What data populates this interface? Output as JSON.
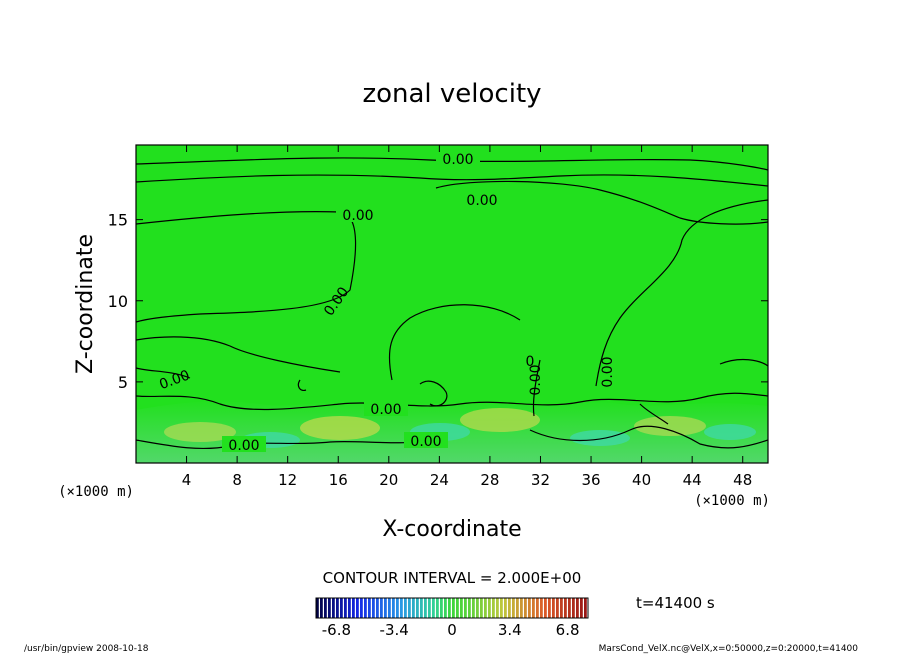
{
  "chart_data": {
    "type": "heatmap",
    "title": "zonal velocity",
    "xlabel": "X-coordinate",
    "ylabel": "Z-coordinate",
    "x_unit": "(×1000 m)",
    "y_unit": "(×1000 m)",
    "xlim": [
      0,
      50
    ],
    "ylim": [
      0,
      19.6
    ],
    "x_ticks": [
      4,
      8,
      12,
      16,
      20,
      24,
      28,
      32,
      36,
      40,
      44,
      48
    ],
    "y_ticks": [
      5,
      10,
      15
    ],
    "contour_interval": "CONTOUR INTERVAL = 2.000E+00",
    "contour_labels": [
      "0.00",
      "0.00",
      "0.00",
      "0.00",
      "0.00",
      "0.00",
      "0.00",
      "0.00",
      "0.00",
      "0.00",
      "0"
    ],
    "time_label": "t=41400 s",
    "colorbar": {
      "range": [
        -8,
        8
      ],
      "ticks": [
        -6.8,
        -3.4,
        0,
        3.4,
        6.8
      ],
      "tick_labels": [
        "-6.8",
        "-3.4",
        "0",
        "3.4",
        "6.8"
      ]
    },
    "colors": {
      "field": "#22e01e",
      "near_surface": "#5ad96a",
      "warm_patch": "#c8d94a",
      "cool_patch": "#3fd9b0"
    },
    "grid": false,
    "legend": "colorbar bottom-center"
  },
  "footer": {
    "left": "/usr/bin/gpview   2008-10-18",
    "right": "MarsCond_VelX.nc@VelX,x=0:50000,z=0:20000,t=41400"
  }
}
